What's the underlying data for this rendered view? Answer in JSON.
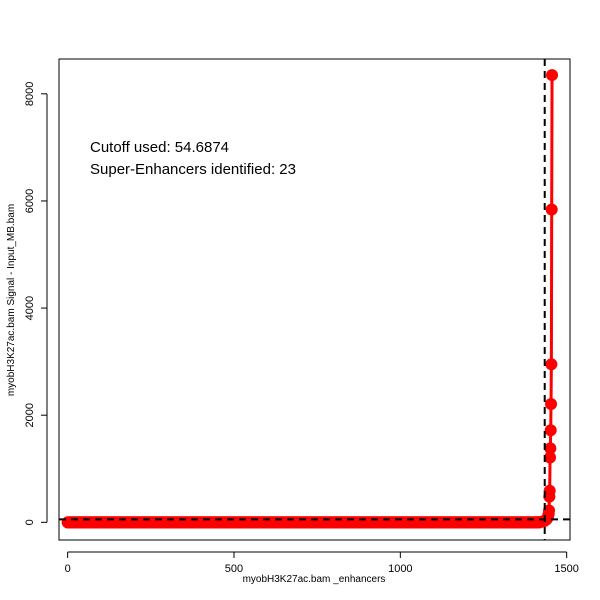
{
  "chart_data": {
    "type": "line",
    "title": "",
    "xlabel": "myobH3K27ac.bam _enhancers",
    "ylabel": "myobH3K27ac.bam  Signal - Input_MB.bam",
    "xlim": [
      -26,
      1510
    ],
    "ylim": [
      -330,
      8650
    ],
    "x_ticks": [
      0,
      500,
      1000,
      1500
    ],
    "y_ticks": [
      0,
      2000,
      4000,
      6000,
      8000
    ],
    "x_tick_labels": [
      "0",
      "500",
      "1000",
      "1500"
    ],
    "y_tick_labels": [
      "0",
      "2000",
      "4000",
      "6000",
      "8000"
    ],
    "n_points": 1457,
    "series": [
      {
        "color": "#ff0000",
        "low_baseline_value": 0,
        "upper_points": [
          {
            "x": 1418,
            "y": 5
          },
          {
            "x": 1425,
            "y": 10
          },
          {
            "x": 1430,
            "y": 18
          },
          {
            "x": 1434,
            "y": 30
          },
          {
            "x": 1437,
            "y": 45
          },
          {
            "x": 1440,
            "y": 60
          },
          {
            "x": 1442,
            "y": 80
          },
          {
            "x": 1444,
            "y": 110
          },
          {
            "x": 1446,
            "y": 160
          },
          {
            "x": 1447,
            "y": 220
          },
          {
            "x": 1448,
            "y": 480
          },
          {
            "x": 1449,
            "y": 590
          },
          {
            "x": 1450,
            "y": 1210
          },
          {
            "x": 1451,
            "y": 1380
          },
          {
            "x": 1452,
            "y": 1720
          },
          {
            "x": 1453,
            "y": 2210
          },
          {
            "x": 1454,
            "y": 2950
          },
          {
            "x": 1455,
            "y": 5840
          },
          {
            "x": 1456,
            "y": 8350
          }
        ]
      }
    ],
    "reference_lines": {
      "vertical_x": 1434,
      "horizontal_y": 54.6874,
      "style": "dashed",
      "color": "#000000"
    },
    "annotations": {
      "cutoff_text": "Cutoff used:  54.6874",
      "super_enhancers_text": "Super-Enhancers identified:  23"
    },
    "grid": false,
    "legend": "none"
  }
}
